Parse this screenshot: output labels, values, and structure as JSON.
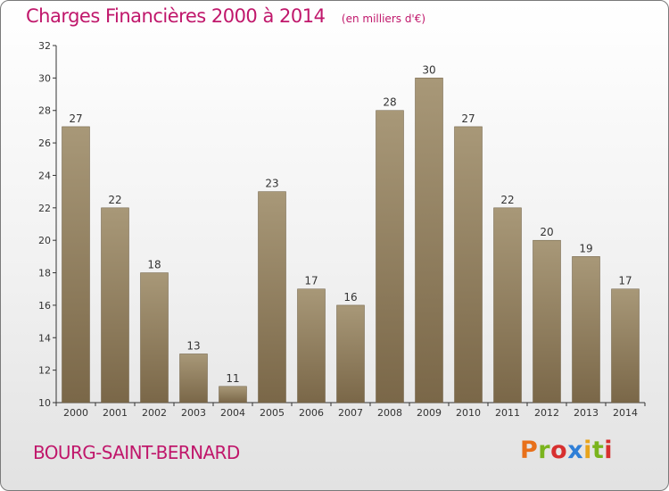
{
  "header": {
    "title": "Charges Financières 2000 à 2014",
    "subtitle": "(en milliers d'€)"
  },
  "footer": {
    "commune": "BOURG-SAINT-BERNARD",
    "logo_text": "Proxiti",
    "logo_colors": [
      "#e8701a",
      "#7ab41d",
      "#d72f2f",
      "#2f7fd7",
      "#e8a41a",
      "#7ab41d",
      "#d72f2f"
    ]
  },
  "colors": {
    "title": "#c0176b",
    "bar_light": "#a89878",
    "bar_dark": "#7a6748",
    "axis": "#333333"
  },
  "chart_data": {
    "type": "bar",
    "title": "Charges Financières 2000 à 2014",
    "subtitle": "(en milliers d'€)",
    "categories": [
      "2000",
      "2001",
      "2002",
      "2003",
      "2004",
      "2005",
      "2006",
      "2007",
      "2008",
      "2009",
      "2010",
      "2011",
      "2012",
      "2013",
      "2014"
    ],
    "values": [
      27,
      22,
      18,
      13,
      11,
      23,
      17,
      16,
      28,
      30,
      27,
      22,
      20,
      19,
      17
    ],
    "ylim": [
      10,
      32
    ],
    "yticks": [
      10,
      12,
      14,
      16,
      18,
      20,
      22,
      24,
      26,
      28,
      30,
      32
    ],
    "grid": false,
    "data_labels": true
  }
}
